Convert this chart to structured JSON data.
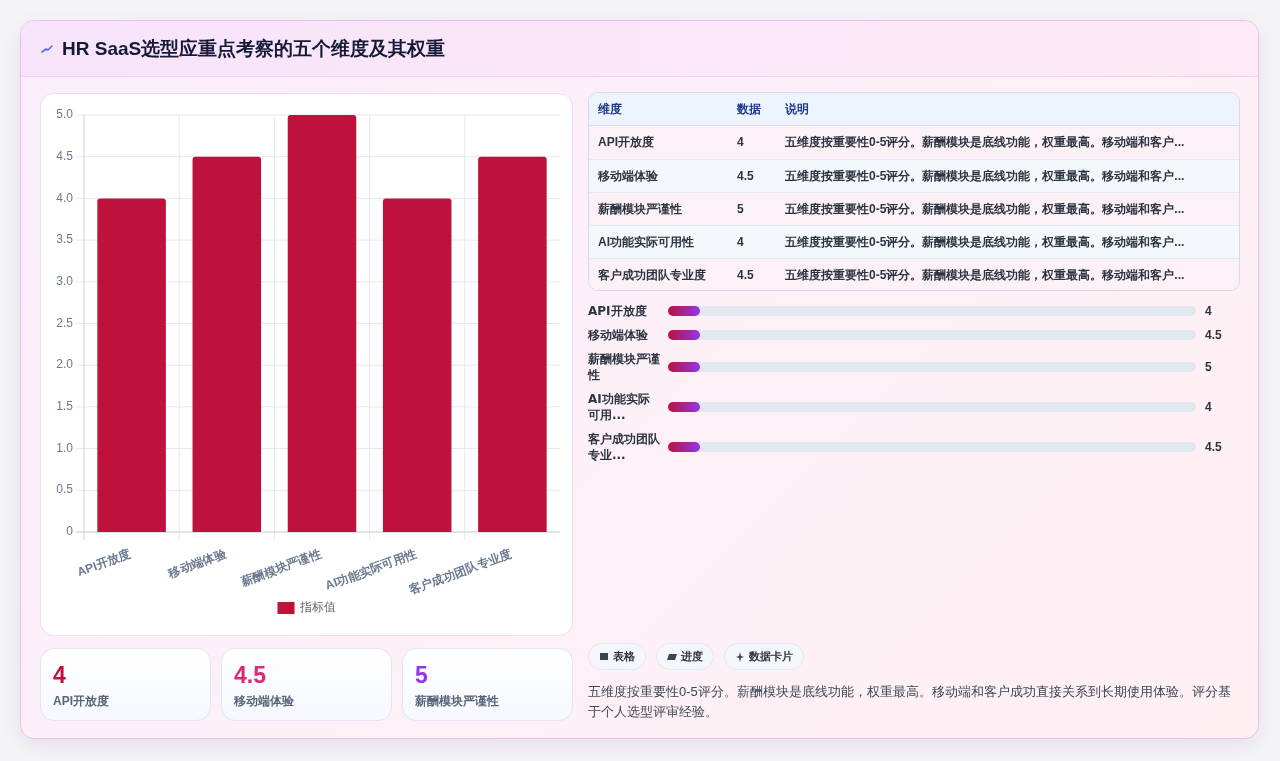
{
  "chart_data": [
    {
      "type": "bar",
      "title": "HR SaaS选型应重点考察的五个维度及其权重",
      "categories": [
        "API开放度",
        "移动端体验",
        "薪酬模块严谨性",
        "AI功能实际可用性",
        "客户成功团队专业度"
      ],
      "series": [
        {
          "name": "指标值",
          "color": "#be123c",
          "values": [
            4,
            4.5,
            5,
            4,
            4.5
          ]
        }
      ],
      "ylim": [
        0,
        5
      ],
      "yticks": [
        0,
        0.5,
        {
          "value": 1,
          "label": "1.0"
        },
        1.5,
        {
          "value": 2,
          "label": "2.0"
        },
        2.5,
        {
          "value": 3,
          "label": "3.0"
        },
        3.5,
        {
          "value": 4,
          "label": "4.0"
        },
        4.5,
        {
          "value": 5,
          "label": "5.0"
        }
      ],
      "grid": true,
      "legend": "bottom"
    },
    {
      "type": "other",
      "categories": [
        "API开放度",
        "移动端体验",
        "薪酬模块严谨性",
        "AI功能实际可用性",
        "客户成功团队专业度"
      ],
      "values": [
        4,
        4.5,
        5,
        4,
        4.5
      ],
      "data_labels": true,
      "annotations": [
        "维度",
        "数据",
        "说明",
        "五维度按重要性0-5评分。薪酬模块是底线功能，权重最高。移动端和客户...",
        "五维度按重要性0-5评分。薪酬模块是底线功能，权重最高。移动端和客户...",
        "五维度按重要性0-5评分。薪酬模块是底线功能，权重最高。移动端和客户...",
        "五维度按重要性0-5评分。薪酬模块是底线功能，权重最高。移动端和客户...",
        "五维度按重要性0-5评分。薪酬模块是底线功能，权重最高。移动端和客户..."
      ]
    },
    {
      "type": "other",
      "categories": [
        "API开放度",
        "移动端体验",
        "薪酬模块严谨性",
        "AI功能实际可用...",
        "客户成功团队专业..."
      ],
      "values": [
        4,
        4.5,
        5,
        4,
        4.5
      ],
      "data_labels": true
    },
    {
      "type": "other",
      "categories": [
        "API开放度",
        "移动端体验",
        "薪酬模块严谨性"
      ],
      "values": [
        4,
        4.5,
        5
      ],
      "data_labels": true
    },
    {
      "type": "other",
      "annotations": [
        "表格",
        "进度",
        "数据卡片",
        "五维度按重要性0-5评分。薪酬模块是底线功能，权重最高。移动端和客户成功直接关系到长期使用体验。评分基于个人选型评审经验。"
      ]
    }
  ]
}
